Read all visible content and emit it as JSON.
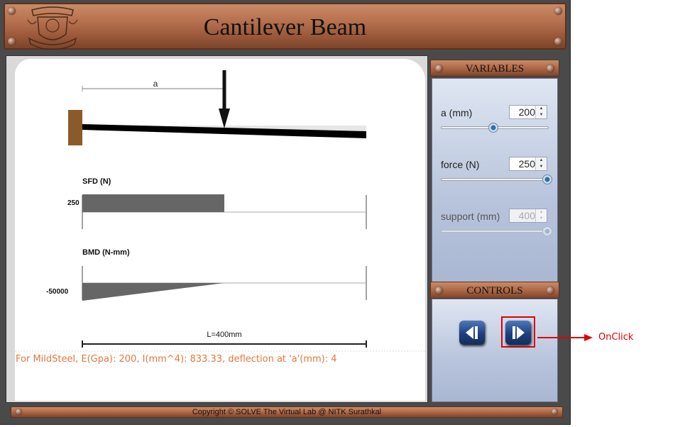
{
  "header": {
    "title": "Cantilever Beam"
  },
  "diagram": {
    "dimension_a_label": "a",
    "sfd_title": "SFD (N)",
    "sfd_value_label": "250",
    "bmd_title": "BMD (N-mm)",
    "bmd_value_label": "-50000",
    "length_label": "L=400mm"
  },
  "info_text": "For MildSteel, E(Gpa): 200, I(mm^4): 833.33, deflection at 'a'(mm): 4",
  "variables": {
    "title": "VARIABLES",
    "a": {
      "label": "a (mm)",
      "value": "200",
      "slider_fraction": 0.49
    },
    "force": {
      "label": "force (N)",
      "value": "250",
      "slider_fraction": 0.985
    },
    "support": {
      "label": "support (mm)",
      "value": "400",
      "slider_fraction": 0.985
    }
  },
  "controls": {
    "title": "CONTROLS",
    "prev_icon": "step-back-icon",
    "next_icon": "step-forward-icon"
  },
  "footer": {
    "copyright": "Copyright © SOLVE The Virtual Lab @ NITK Surathkal"
  },
  "annotation": {
    "label": "OnClick",
    "color": "#e00000"
  },
  "colors": {
    "wood": "#b97351",
    "beam": "#000000",
    "support": "#8b5a2b",
    "info": "#e2783c",
    "button": "#1d3f7e"
  }
}
